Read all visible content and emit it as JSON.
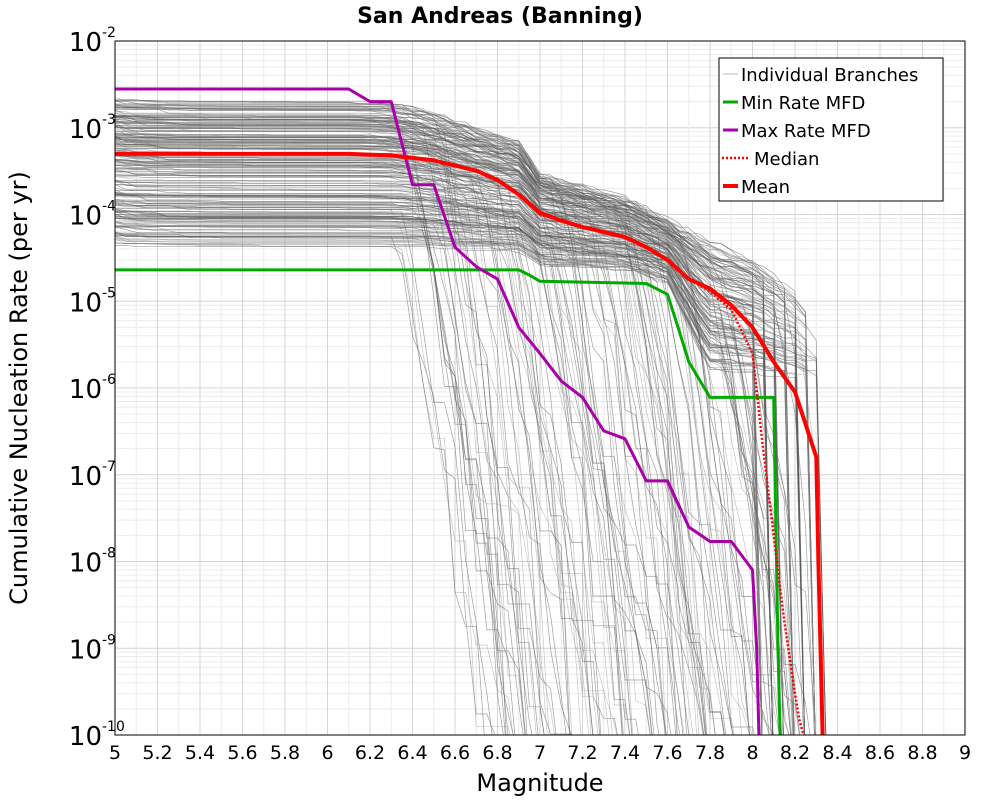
{
  "chart_data": {
    "type": "line",
    "title": "San Andreas (Banning)",
    "xlabel": "Magnitude",
    "ylabel": "Cumulative Nucleation Rate (per yr)",
    "xlim": [
      5,
      9
    ],
    "ylim": [
      1e-10,
      0.01
    ],
    "yscale": "log",
    "grid": true,
    "legend_position": "top-right",
    "x_ticks": [
      "5",
      "5.2",
      "5.4",
      "5.6",
      "5.8",
      "6",
      "6.2",
      "6.4",
      "6.6",
      "6.8",
      "7",
      "7.2",
      "7.4",
      "7.6",
      "7.8",
      "8",
      "8.2",
      "8.4",
      "8.6",
      "8.8",
      "9"
    ],
    "y_ticks": [
      {
        "base": "10",
        "exp": "-10",
        "value": 1e-10
      },
      {
        "base": "10",
        "exp": "-9",
        "value": 1e-09
      },
      {
        "base": "10",
        "exp": "-8",
        "value": 1e-08
      },
      {
        "base": "10",
        "exp": "-7",
        "value": 1e-07
      },
      {
        "base": "10",
        "exp": "-6",
        "value": 1e-06
      },
      {
        "base": "10",
        "exp": "-5",
        "value": 1e-05
      },
      {
        "base": "10",
        "exp": "-4",
        "value": 0.0001
      },
      {
        "base": "10",
        "exp": "-3",
        "value": 0.001
      },
      {
        "base": "10",
        "exp": "-2",
        "value": 0.01
      }
    ],
    "series": [
      {
        "name": "Individual Branches",
        "color": "#555555",
        "style": "thin",
        "note_range": "hundreds of logic-tree branch MFDs between min and max envelopes",
        "x": [
          5.0,
          6.1,
          6.3,
          6.5,
          6.7,
          6.9,
          7.0,
          7.2,
          7.4,
          7.6,
          7.8,
          8.0,
          8.2,
          8.3
        ],
        "upper": [
          0.0022,
          0.0022,
          0.002,
          0.0015,
          0.001,
          0.0007,
          0.0003,
          0.00022,
          0.00016,
          9e-05,
          5e-05,
          3e-05,
          1.3e-05,
          6e-06
        ],
        "lower": [
          2.3e-05,
          2.3e-05,
          2.3e-05,
          2.3e-05,
          2.3e-05,
          2.3e-05,
          1.7e-05,
          1.7e-05,
          1.7e-05,
          1.2e-05,
          7.8e-07,
          1e-10,
          1e-10,
          1e-10
        ]
      },
      {
        "name": "Min Rate MFD",
        "color": "#00aa00",
        "x": [
          5.0,
          6.9,
          6.95,
          7.0,
          7.5,
          7.6,
          7.65,
          7.7,
          7.8,
          8.1,
          8.12,
          8.13
        ],
        "y": [
          2.3e-05,
          2.3e-05,
          2e-05,
          1.7e-05,
          1.6e-05,
          1.2e-05,
          5e-06,
          2e-06,
          7.8e-07,
          7.8e-07,
          1e-09,
          1e-10
        ]
      },
      {
        "name": "Max Rate MFD",
        "color": "#aa00aa",
        "x": [
          5.0,
          6.1,
          6.2,
          6.3,
          6.4,
          6.5,
          6.6,
          6.7,
          6.8,
          6.9,
          7.0,
          7.1,
          7.2,
          7.3,
          7.4,
          7.5,
          7.6,
          7.7,
          7.8,
          7.9,
          8.0,
          8.02,
          8.03
        ],
        "y": [
          0.0028,
          0.0028,
          0.002,
          0.002,
          0.00022,
          0.00022,
          4.2e-05,
          2.5e-05,
          1.8e-05,
          5e-06,
          2.5e-06,
          1.2e-06,
          7.8e-07,
          3.2e-07,
          2.6e-07,
          8.5e-08,
          8.5e-08,
          2.5e-08,
          1.7e-08,
          1.7e-08,
          8e-09,
          1e-09,
          1e-10
        ]
      },
      {
        "name": "Median",
        "color": "#ff0000",
        "dashed": true,
        "x": [
          5.0,
          6.1,
          6.3,
          6.5,
          6.7,
          6.8,
          6.9,
          7.0,
          7.1,
          7.2,
          7.4,
          7.5,
          7.6,
          7.7,
          7.8,
          7.9,
          8.0,
          8.05,
          8.1,
          8.15,
          8.2,
          8.22,
          8.24
        ],
        "y": [
          0.0005,
          0.0005,
          0.00048,
          0.00042,
          0.00032,
          0.00025,
          0.00017,
          0.0001,
          8.5e-05,
          7.2e-05,
          5.5e-05,
          4.2e-05,
          3e-05,
          1.8e-05,
          1.3e-05,
          8e-06,
          2.5e-06,
          2e-07,
          2e-08,
          2e-09,
          3e-10,
          1.5e-10,
          1e-10
        ]
      },
      {
        "name": "Mean",
        "color": "#ff0000",
        "thick": true,
        "x": [
          5.0,
          6.1,
          6.3,
          6.5,
          6.7,
          6.8,
          6.9,
          7.0,
          7.1,
          7.2,
          7.4,
          7.5,
          7.6,
          7.7,
          7.8,
          7.9,
          8.0,
          8.1,
          8.2,
          8.3,
          8.31,
          8.32,
          8.33
        ],
        "y": [
          0.0005,
          0.0005,
          0.00048,
          0.00042,
          0.00032,
          0.00025,
          0.00017,
          0.000105,
          8.5e-05,
          7.2e-05,
          5.5e-05,
          4.2e-05,
          3e-05,
          1.8e-05,
          1.4e-05,
          9e-06,
          5e-06,
          2e-06,
          9e-07,
          1.6e-07,
          1e-08,
          1e-09,
          1e-10
        ]
      }
    ]
  }
}
